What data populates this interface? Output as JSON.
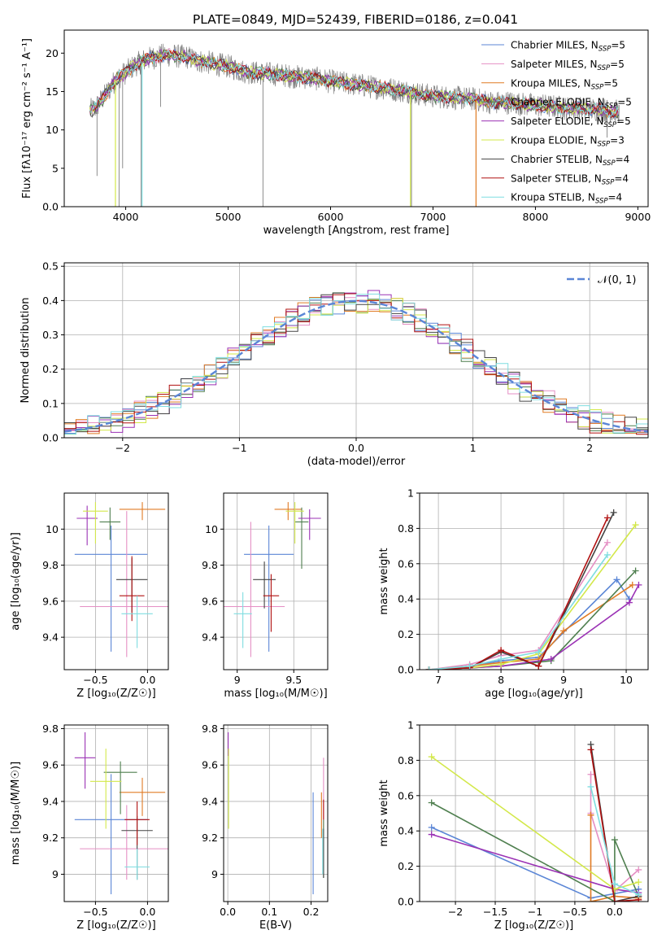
{
  "figure": {
    "title": "PLATE=0849, MJD=52439, FIBERID=0186, z=0.041"
  },
  "models": [
    {
      "name": "Chabrier MILES",
      "nssp": "5",
      "color": "#5b86d6"
    },
    {
      "name": "Salpeter MILES",
      "nssp": "5",
      "color": "#e58fc4"
    },
    {
      "name": "Kroupa MILES",
      "nssp": "5",
      "color": "#e07b24"
    },
    {
      "name": "Chabrier ELODIE",
      "nssp": "5",
      "color": "#4f7f4f"
    },
    {
      "name": "Salpeter ELODIE",
      "nssp": "5",
      "color": "#9b32b5"
    },
    {
      "name": "Kroupa ELODIE",
      "nssp": "3",
      "color": "#d3e84a"
    },
    {
      "name": "Chabrier STELIB",
      "nssp": "4",
      "color": "#444444"
    },
    {
      "name": "Salpeter STELIB",
      "nssp": "4",
      "color": "#b01010"
    },
    {
      "name": "Kroupa STELIB",
      "nssp": "4",
      "color": "#7fdde0"
    }
  ],
  "chart_data": [
    {
      "id": "spectrum",
      "type": "line",
      "xlabel": "wavelength [Angstrom, rest frame]",
      "ylabel": "Flux [fλ10⁻¹⁷ erg cm⁻² s⁻¹ A⁻¹]",
      "xlim": [
        3400,
        9100
      ],
      "ylim": [
        0,
        23
      ],
      "xticks": [
        4000,
        5000,
        6000,
        7000,
        8000,
        9000
      ],
      "yticks": [
        0,
        5,
        10,
        15,
        20
      ],
      "legend_position": "top-right",
      "data_color": "#808080",
      "continuum": [
        [
          3650,
          12.5
        ],
        [
          3700,
          12.8
        ],
        [
          3800,
          14.5
        ],
        [
          3900,
          16.5
        ],
        [
          4000,
          17.5
        ],
        [
          4100,
          18.5
        ],
        [
          4200,
          19.2
        ],
        [
          4300,
          19.5
        ],
        [
          4400,
          19.8
        ],
        [
          4500,
          19.6
        ],
        [
          4600,
          19.5
        ],
        [
          4700,
          19.0
        ],
        [
          4800,
          18.8
        ],
        [
          4900,
          18.5
        ],
        [
          5000,
          18.3
        ],
        [
          5100,
          17.8
        ],
        [
          5200,
          17.5
        ],
        [
          5300,
          17.4
        ],
        [
          5400,
          17.3
        ],
        [
          5500,
          17.2
        ],
        [
          5600,
          17.0
        ],
        [
          5700,
          16.9
        ],
        [
          5800,
          16.8
        ],
        [
          5900,
          16.6
        ],
        [
          6000,
          16.3
        ],
        [
          6100,
          16.1
        ],
        [
          6200,
          16.0
        ],
        [
          6300,
          15.8
        ],
        [
          6400,
          15.6
        ],
        [
          6500,
          15.5
        ],
        [
          6600,
          15.3
        ],
        [
          6700,
          15.1
        ],
        [
          6800,
          14.9
        ],
        [
          6900,
          14.6
        ],
        [
          7000,
          14.4
        ],
        [
          7100,
          14.3
        ],
        [
          7200,
          14.2
        ],
        [
          7300,
          14.1
        ],
        [
          7400,
          14.0
        ],
        [
          7500,
          13.8
        ],
        [
          7600,
          13.5
        ],
        [
          7700,
          13.6
        ],
        [
          7800,
          13.5
        ],
        [
          7900,
          13.3
        ],
        [
          8000,
          13.2
        ],
        [
          8100,
          13.1
        ],
        [
          8200,
          13.0
        ],
        [
          8300,
          12.8
        ],
        [
          8400,
          12.9
        ],
        [
          8500,
          12.6
        ],
        [
          8600,
          12.7
        ],
        [
          8700,
          12.5
        ],
        [
          8800,
          12.4
        ]
      ],
      "absorption_lines": [
        {
          "x": 3720,
          "y": 4
        },
        {
          "x": 3935,
          "y": 0
        },
        {
          "x": 3970,
          "y": 5
        },
        {
          "x": 4150,
          "y": 0
        },
        {
          "x": 4340,
          "y": 13
        },
        {
          "x": 5340,
          "y": 0
        },
        {
          "x": 6790,
          "y": 0
        },
        {
          "x": 8700,
          "y": 9
        }
      ],
      "model_dropouts": [
        {
          "model": "Kroupa ELODIE",
          "x": 3900,
          "y": 0
        },
        {
          "model": "Kroupa ELODIE",
          "x": 6780,
          "y": 0
        },
        {
          "model": "Kroupa MILES",
          "x": 7420,
          "y": 0
        },
        {
          "model": "Kroupa STELIB",
          "x": 4160,
          "y": 0
        }
      ]
    },
    {
      "id": "residuals",
      "type": "line",
      "xlabel": "(data-model)/error",
      "ylabel": "Normed distribution",
      "xlim": [
        -2.5,
        2.5
      ],
      "ylim": [
        0,
        0.51
      ],
      "xticks": [
        -2,
        -1,
        0,
        1,
        2
      ],
      "yticks": [
        0.0,
        0.1,
        0.2,
        0.3,
        0.4,
        0.5
      ],
      "grid": true,
      "legend": [
        {
          "name": "𝒩(0, 1)",
          "style": "dashed",
          "color": "#5b86d6"
        }
      ],
      "legend_position": "top-right"
    },
    {
      "id": "age_vs_Z",
      "type": "scatter",
      "xlabel": "Z [log₁₀(Z/Z☉)]",
      "ylabel": "age  [log₁₀(age/yr)]",
      "xlim": [
        -0.8,
        0.2
      ],
      "ylim": [
        9.22,
        10.2
      ],
      "xticks": [
        -0.5,
        0.0
      ],
      "yticks": [
        9.4,
        9.6,
        9.8,
        10.0
      ],
      "points": [
        {
          "model": "Chabrier MILES",
          "x": -0.35,
          "y": 9.86,
          "xerr": 0.35,
          "yerr_lo": 0.54,
          "yerr_hi": 0.16
        },
        {
          "model": "Salpeter MILES",
          "x": -0.2,
          "y": 9.57,
          "xerr": 0.45,
          "yerr_lo": 0.28,
          "yerr_hi": 0.53
        },
        {
          "model": "Kroupa MILES",
          "x": -0.05,
          "y": 10.11,
          "xerr": 0.22,
          "yerr_lo": 0.06,
          "yerr_hi": 0.04
        },
        {
          "model": "Chabrier ELODIE",
          "x": -0.36,
          "y": 10.04,
          "xerr": 0.1,
          "yerr_lo": 0.1,
          "yerr_hi": 0.08
        },
        {
          "model": "Salpeter ELODIE",
          "x": -0.58,
          "y": 10.06,
          "xerr": 0.1,
          "yerr_lo": 0.15,
          "yerr_hi": 0.07
        },
        {
          "model": "Kroupa ELODIE",
          "x": -0.5,
          "y": 10.1,
          "xerr": 0.12,
          "yerr_lo": 0.18,
          "yerr_hi": 0.05
        },
        {
          "model": "Chabrier STELIB",
          "x": -0.15,
          "y": 9.72,
          "xerr": 0.15,
          "yerr_lo": 0.18,
          "yerr_hi": 0.12
        },
        {
          "model": "Salpeter STELIB",
          "x": -0.15,
          "y": 9.63,
          "xerr": 0.12,
          "yerr_lo": 0.14,
          "yerr_hi": 0.22
        },
        {
          "model": "Kroupa STELIB",
          "x": -0.1,
          "y": 9.53,
          "xerr": 0.15,
          "yerr_lo": 0.19,
          "yerr_hi": 0.1
        }
      ]
    },
    {
      "id": "age_vs_mass",
      "type": "scatter",
      "xlabel": "mass [log₁₀(M/M☉)]",
      "xlim": [
        8.88,
        9.8
      ],
      "ylim": [
        9.22,
        10.2
      ],
      "xticks": [
        9.0,
        9.5
      ],
      "yticks": [
        9.4,
        9.6,
        9.8,
        10.0
      ],
      "points": [
        {
          "model": "Chabrier MILES",
          "x": 9.28,
          "y": 9.86,
          "xerr": 0.22,
          "yerr_lo": 0.54,
          "yerr_hi": 0.16
        },
        {
          "model": "Salpeter MILES",
          "x": 9.12,
          "y": 9.57,
          "xerr": 0.3,
          "yerr_lo": 0.28,
          "yerr_hi": 0.47
        },
        {
          "model": "Kroupa MILES",
          "x": 9.45,
          "y": 10.11,
          "xerr": 0.12,
          "yerr_lo": 0.06,
          "yerr_hi": 0.04
        },
        {
          "model": "Chabrier ELODIE",
          "x": 9.57,
          "y": 10.04,
          "xerr": 0.06,
          "yerr_lo": 0.26,
          "yerr_hi": 0.08
        },
        {
          "model": "Salpeter ELODIE",
          "x": 9.64,
          "y": 10.06,
          "xerr": 0.1,
          "yerr_lo": 0.12,
          "yerr_hi": 0.05
        },
        {
          "model": "Kroupa ELODIE",
          "x": 9.51,
          "y": 10.1,
          "xerr": 0.08,
          "yerr_lo": 0.18,
          "yerr_hi": 0.05
        },
        {
          "model": "Chabrier STELIB",
          "x": 9.24,
          "y": 9.72,
          "xerr": 0.1,
          "yerr_lo": 0.16,
          "yerr_hi": 0.1
        },
        {
          "model": "Salpeter STELIB",
          "x": 9.3,
          "y": 9.63,
          "xerr": 0.07,
          "yerr_lo": 0.2,
          "yerr_hi": 0.12
        },
        {
          "model": "Kroupa STELIB",
          "x": 9.05,
          "y": 9.53,
          "xerr": 0.08,
          "yerr_lo": 0.19,
          "yerr_hi": 0.12
        }
      ]
    },
    {
      "id": "massweight_vs_age",
      "type": "line",
      "xlabel": "age  [log₁₀(age/yr)]",
      "ylabel": "mass weight",
      "xlim": [
        6.7,
        10.35
      ],
      "ylim": [
        0,
        1.0
      ],
      "xticks": [
        7,
        8,
        9,
        10
      ],
      "yticks": [
        0.0,
        0.2,
        0.4,
        0.6,
        0.8,
        1.0
      ],
      "series": [
        {
          "model": "Chabrier MILES",
          "x": [
            6.85,
            7.5,
            8.0,
            8.6,
            9.85,
            10.05
          ],
          "y": [
            0.0,
            0.02,
            0.05,
            0.07,
            0.51,
            0.4
          ]
        },
        {
          "model": "Salpeter MILES",
          "x": [
            6.85,
            7.5,
            8.0,
            8.6,
            9.7
          ],
          "y": [
            0.0,
            0.03,
            0.08,
            0.11,
            0.72
          ]
        },
        {
          "model": "Kroupa MILES",
          "x": [
            6.85,
            7.5,
            8.0,
            8.6,
            9.0,
            10.1
          ],
          "y": [
            0.0,
            0.02,
            0.04,
            0.06,
            0.22,
            0.48
          ]
        },
        {
          "model": "Chabrier ELODIE",
          "x": [
            6.85,
            7.5,
            8.0,
            8.8,
            10.15
          ],
          "y": [
            0.0,
            0.01,
            0.02,
            0.05,
            0.56
          ]
        },
        {
          "model": "Salpeter ELODIE",
          "x": [
            6.85,
            7.5,
            8.0,
            8.8,
            10.05,
            10.2
          ],
          "y": [
            0.0,
            0.01,
            0.02,
            0.06,
            0.38,
            0.48
          ]
        },
        {
          "model": "Kroupa ELODIE",
          "x": [
            6.85,
            7.5,
            8.0,
            8.6,
            10.15
          ],
          "y": [
            0.0,
            0.01,
            0.03,
            0.09,
            0.82
          ]
        },
        {
          "model": "Chabrier STELIB",
          "x": [
            6.85,
            7.5,
            8.0,
            8.6,
            9.8
          ],
          "y": [
            0.0,
            0.01,
            0.1,
            0.02,
            0.89
          ]
        },
        {
          "model": "Salpeter STELIB",
          "x": [
            6.85,
            7.5,
            8.0,
            8.6,
            9.7
          ],
          "y": [
            0.0,
            0.01,
            0.11,
            0.02,
            0.86
          ]
        },
        {
          "model": "Kroupa STELIB",
          "x": [
            6.85,
            7.5,
            8.0,
            8.6,
            9.7
          ],
          "y": [
            0.0,
            0.02,
            0.06,
            0.1,
            0.65
          ]
        }
      ]
    },
    {
      "id": "mass_vs_Z",
      "type": "scatter",
      "xlabel": "Z [log₁₀(Z/Z☉)]",
      "ylabel": "mass [log₁₀(M/M☉)]",
      "xlim": [
        -0.8,
        0.2
      ],
      "ylim": [
        8.85,
        9.82
      ],
      "xticks": [
        -0.5,
        0.0
      ],
      "yticks": [
        9.0,
        9.2,
        9.4,
        9.6,
        9.8
      ],
      "points": [
        {
          "model": "Chabrier MILES",
          "x": -0.35,
          "y": 9.3,
          "xerr": 0.35,
          "yerr_lo": 0.41,
          "yerr_hi": 0.25
        },
        {
          "model": "Salpeter MILES",
          "x": -0.2,
          "y": 9.14,
          "xerr": 0.45,
          "yerr_lo": 0.17,
          "yerr_hi": 0.24
        },
        {
          "model": "Kroupa MILES",
          "x": -0.05,
          "y": 9.45,
          "xerr": 0.22,
          "yerr_lo": 0.13,
          "yerr_hi": 0.08
        },
        {
          "model": "Chabrier ELODIE",
          "x": -0.26,
          "y": 9.56,
          "xerr": 0.16,
          "yerr_lo": 0.23,
          "yerr_hi": 0.06
        },
        {
          "model": "Salpeter ELODIE",
          "x": -0.6,
          "y": 9.64,
          "xerr": 0.1,
          "yerr_lo": 0.17,
          "yerr_hi": 0.14
        },
        {
          "model": "Kroupa ELODIE",
          "x": -0.4,
          "y": 9.51,
          "xerr": 0.15,
          "yerr_lo": 0.26,
          "yerr_hi": 0.18
        },
        {
          "model": "Chabrier STELIB",
          "x": -0.1,
          "y": 9.24,
          "xerr": 0.15,
          "yerr_lo": 0.27,
          "yerr_hi": 0.08
        },
        {
          "model": "Salpeter STELIB",
          "x": -0.1,
          "y": 9.3,
          "xerr": 0.12,
          "yerr_lo": 0.14,
          "yerr_hi": 0.1
        },
        {
          "model": "Kroupa STELIB",
          "x": -0.1,
          "y": 9.04,
          "xerr": 0.12,
          "yerr_lo": 0.07,
          "yerr_hi": 0.1
        }
      ]
    },
    {
      "id": "mass_vs_EBV",
      "type": "scatter",
      "xlabel": "E(B-V)",
      "xlim": [
        -0.01,
        0.24
      ],
      "ylim": [
        8.85,
        9.82
      ],
      "xticks": [
        0.0,
        0.1,
        0.2
      ],
      "yticks": [
        9.0,
        9.2,
        9.4,
        9.6,
        9.8
      ],
      "points": [
        {
          "model": "Chabrier MILES",
          "x": 0.205,
          "y": 9.17,
          "yerr_lo": 0.28,
          "yerr_hi": 0.28
        },
        {
          "model": "Salpeter MILES",
          "x": 0.23,
          "y": 9.4,
          "yerr_lo": 0.2,
          "yerr_hi": 0.24
        },
        {
          "model": "Kroupa MILES",
          "x": 0.225,
          "y": 9.25,
          "yerr_lo": 0.05,
          "yerr_hi": 0.2
        },
        {
          "model": "Chabrier ELODIE",
          "x": 0.23,
          "y": 9.15,
          "yerr_lo": 0.17,
          "yerr_hi": 0.15
        },
        {
          "model": "Salpeter ELODIE",
          "x": 0.001,
          "y": 9.7,
          "yerr_lo": 0.05,
          "yerr_hi": 0.08
        },
        {
          "model": "Kroupa ELODIE",
          "x": 0.002,
          "y": 9.45,
          "yerr_lo": 0.2,
          "yerr_hi": 0.24
        },
        {
          "model": "Chabrier STELIB",
          "x": 0.23,
          "y": 9.15,
          "yerr_lo": 0.17,
          "yerr_hi": 0.1
        },
        {
          "model": "Salpeter STELIB",
          "x": 0.23,
          "y": 9.35,
          "yerr_lo": 0.05,
          "yerr_hi": 0.06
        },
        {
          "model": "Kroupa STELIB",
          "x": 0.228,
          "y": 9.1,
          "yerr_lo": 0.1,
          "yerr_hi": 0.15
        }
      ]
    },
    {
      "id": "massweight_vs_Z",
      "type": "line",
      "xlabel": "Z [log₁₀(Z/Z☉)]",
      "ylabel": "mass weight",
      "xlim": [
        -2.45,
        0.42
      ],
      "ylim": [
        0,
        1.0
      ],
      "xticks": [
        -2.0,
        -1.5,
        -1.0,
        -0.5,
        0.0
      ],
      "yticks": [
        0.0,
        0.2,
        0.4,
        0.6,
        0.8,
        1.0
      ],
      "series": [
        {
          "model": "Chabrier MILES",
          "x": [
            -2.3,
            -0.3,
            0.3
          ],
          "y": [
            0.42,
            0.02,
            0.07
          ]
        },
        {
          "model": "Salpeter MILES",
          "x": [
            -0.3,
            -0.3,
            0.0,
            0.3
          ],
          "y": [
            0.72,
            0.5,
            0.06,
            0.18
          ]
        },
        {
          "model": "Kroupa MILES",
          "x": [
            -0.3,
            -0.3,
            0.0,
            0.3
          ],
          "y": [
            0.49,
            0.0,
            0.03,
            0.02
          ]
        },
        {
          "model": "Chabrier ELODIE",
          "x": [
            -2.3,
            0.0,
            0.0,
            0.3
          ],
          "y": [
            0.56,
            0.0,
            0.35,
            0.03
          ]
        },
        {
          "model": "Salpeter ELODIE",
          "x": [
            -2.3,
            0.0,
            0.3
          ],
          "y": [
            0.38,
            0.07,
            0.05
          ]
        },
        {
          "model": "Kroupa ELODIE",
          "x": [
            -2.3,
            0.0,
            0.3
          ],
          "y": [
            0.82,
            0.07,
            0.11
          ]
        },
        {
          "model": "Chabrier STELIB",
          "x": [
            -0.3,
            0.0,
            0.3
          ],
          "y": [
            0.89,
            0.0,
            0.03
          ]
        },
        {
          "model": "Salpeter STELIB",
          "x": [
            -0.3,
            0.0,
            0.3
          ],
          "y": [
            0.86,
            0.0,
            0.01
          ]
        },
        {
          "model": "Kroupa STELIB",
          "x": [
            -0.3,
            0.0,
            0.3
          ],
          "y": [
            0.65,
            0.1,
            0.04
          ]
        }
      ]
    }
  ]
}
